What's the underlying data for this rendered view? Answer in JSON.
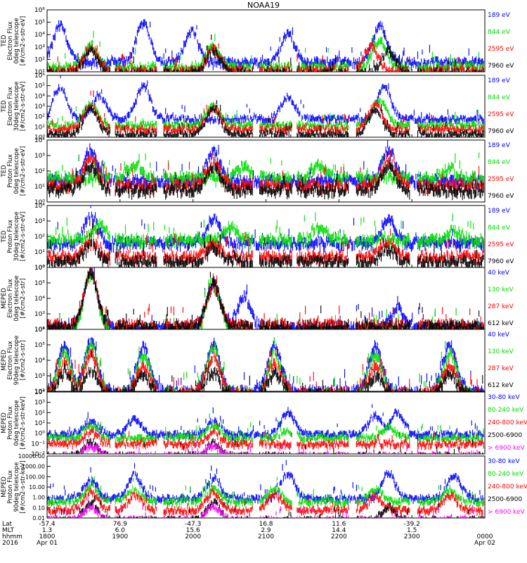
{
  "title": "NOAA19",
  "colors": {
    "black": "#000000",
    "red": "#ff0000",
    "green": "#00dd00",
    "blue": "#0000ff",
    "magenta": "#ff00ff"
  },
  "chart_data": [
    {
      "type": "scatter",
      "panel": 1,
      "ylabel": [
        "TED",
        "Electron Flux",
        "0deg telescope",
        "[#/cm2-s-str-eV]"
      ],
      "yscale": "log",
      "ylim": [
        10,
        1000000
      ],
      "yticks": [
        "10¹",
        "10²",
        "10³",
        "10⁴",
        "10⁵",
        "10⁶"
      ],
      "legend_placement": "right",
      "series": [
        {
          "name": "7960 eV",
          "color": "black",
          "bursts": [
            [
              0.1,
              3
            ],
            [
              0.38,
              3
            ],
            [
              0.78,
              3
            ]
          ],
          "base": 1.1
        },
        {
          "name": "2595 eV",
          "color": "red",
          "bursts": [
            [
              0.1,
              3.2
            ],
            [
              0.38,
              3.1
            ],
            [
              0.74,
              3.3
            ]
          ],
          "base": 1.3
        },
        {
          "name": "844 eV",
          "color": "green",
          "bursts": [
            [
              0.1,
              3.4
            ],
            [
              0.38,
              3.3
            ],
            [
              0.76,
              3.8
            ]
          ],
          "base": 1.6
        },
        {
          "name": "189 eV",
          "color": "blue",
          "bursts": [
            [
              0.03,
              5
            ],
            [
              0.22,
              5.2
            ],
            [
              0.33,
              4.5
            ],
            [
              0.55,
              4.3
            ],
            [
              0.76,
              5
            ]
          ],
          "base": 2
        }
      ]
    },
    {
      "type": "scatter",
      "panel": 2,
      "ylabel": [
        "TED",
        "Electron Flux",
        "30deg telescope",
        "[#/cm2-s-str-eV]"
      ],
      "yscale": "log",
      "ylim": [
        1,
        1000000
      ],
      "yticks": [
        "10⁰",
        "10¹",
        "10²",
        "10³",
        "10⁴",
        "10⁵",
        "10⁶"
      ],
      "legend_placement": "right",
      "series": [
        {
          "name": "7960 eV",
          "color": "black",
          "bursts": [
            [
              0.1,
              3
            ],
            [
              0.38,
              3
            ],
            [
              0.75,
              3
            ]
          ],
          "base": 0.5
        },
        {
          "name": "2595 eV",
          "color": "red",
          "bursts": [
            [
              0.1,
              3.3
            ],
            [
              0.38,
              3.1
            ],
            [
              0.75,
              3.4
            ]
          ],
          "base": 1
        },
        {
          "name": "844 eV",
          "color": "green",
          "bursts": [
            [
              0.1,
              3.5
            ],
            [
              0.38,
              3.3
            ],
            [
              0.76,
              3.8
            ]
          ],
          "base": 1.4
        },
        {
          "name": "189 eV",
          "color": "blue",
          "bursts": [
            [
              0.03,
              5
            ],
            [
              0.12,
              4.3
            ],
            [
              0.22,
              5.2
            ],
            [
              0.55,
              4.1
            ],
            [
              0.77,
              5.2
            ]
          ],
          "base": 2
        }
      ]
    },
    {
      "type": "scatter",
      "panel": 3,
      "ylabel": [
        "TED",
        "Proton Flux",
        "0deg telescope",
        "[#/cm2-s-str-eV]"
      ],
      "yscale": "log",
      "ylim": [
        1,
        10000
      ],
      "yticks": [
        "10⁰",
        "10¹",
        "10²",
        "10³",
        "10⁴"
      ],
      "legend_placement": "right",
      "series": [
        {
          "name": "7960 eV",
          "color": "black",
          "bursts": [
            [
              0.1,
              2.6
            ],
            [
              0.38,
              2.6
            ],
            [
              0.78,
              2.5
            ]
          ],
          "base": 1
        },
        {
          "name": "2595 eV",
          "color": "red",
          "bursts": [
            [
              0.1,
              2.9
            ],
            [
              0.38,
              2.8
            ],
            [
              0.78,
              2.9
            ]
          ],
          "base": 1.3
        },
        {
          "name": "844 eV",
          "color": "green",
          "bursts": [
            [
              0.2,
              2.6
            ],
            [
              0.45,
              2.5
            ],
            [
              0.62,
              2.7
            ],
            [
              0.92,
              2.4
            ]
          ],
          "base": 1.8
        },
        {
          "name": "189 eV",
          "color": "blue",
          "bursts": [
            [
              0.1,
              3.6
            ],
            [
              0.38,
              3.4
            ],
            [
              0.78,
              3.5
            ]
          ],
          "base": 1.6
        }
      ]
    },
    {
      "type": "scatter",
      "panel": 4,
      "ylabel": [
        "TED",
        "Proton Flux",
        "30deg telescope",
        "[#/cm2-s-str-eV]"
      ],
      "yscale": "log",
      "ylim": [
        1,
        10000
      ],
      "yticks": [
        "10⁰",
        "10¹",
        "10²",
        "10³",
        "10⁴"
      ],
      "legend_placement": "right",
      "series": [
        {
          "name": "7960 eV",
          "color": "black",
          "bursts": [
            [
              0.1,
              1.6
            ],
            [
              0.38,
              1.5
            ],
            [
              0.78,
              1.4
            ]
          ],
          "base": 0.6
        },
        {
          "name": "2595 eV",
          "color": "red",
          "bursts": [
            [
              0.1,
              1.9
            ],
            [
              0.38,
              1.8
            ],
            [
              0.78,
              1.9
            ]
          ],
          "base": 0.9
        },
        {
          "name": "844 eV",
          "color": "green",
          "bursts": [
            [
              0.12,
              3.0
            ],
            [
              0.42,
              2.8
            ],
            [
              0.62,
              2.9
            ],
            [
              0.93,
              2.6
            ]
          ],
          "base": 2
        },
        {
          "name": "189 eV",
          "color": "blue",
          "bursts": [
            [
              0.1,
              3.5
            ],
            [
              0.38,
              3.4
            ],
            [
              0.78,
              3.4
            ]
          ],
          "base": 1.8
        }
      ]
    },
    {
      "type": "scatter",
      "panel": 5,
      "ylabel": [
        "MEPED",
        "Electron Flux",
        "0deg telescope",
        "[#/cm2-s-str]"
      ],
      "yscale": "log",
      "ylim": [
        100,
        1000000
      ],
      "yticks": [
        "10²",
        "10³",
        "10⁴",
        "10⁵",
        "10⁶"
      ],
      "legend_placement": "right",
      "series": [
        {
          "name": "612 keV",
          "color": "black",
          "bursts": [
            [
              0.1,
              5.9
            ],
            [
              0.38,
              5.2
            ]
          ],
          "base": 2.4
        },
        {
          "name": "287 keV",
          "color": "red",
          "bursts": [
            [
              0.1,
              5.9
            ],
            [
              0.38,
              5.1
            ]
          ],
          "base": 2.5
        },
        {
          "name": "130 keV",
          "color": "green",
          "bursts": [
            [
              0.1,
              5.8
            ],
            [
              0.38,
              5.0
            ]
          ],
          "base": 2.1
        },
        {
          "name": "40 keV",
          "color": "blue",
          "bursts": [
            [
              0.1,
              6.0
            ],
            [
              0.38,
              5.2
            ],
            [
              0.45,
              4.3
            ],
            [
              0.8,
              3.6
            ]
          ],
          "base": 2.3
        }
      ]
    },
    {
      "type": "scatter",
      "panel": 6,
      "ylabel": [
        "MEPED",
        "Electron Flux",
        "90deg telescope",
        "[#/cm2-s-str]"
      ],
      "yscale": "log",
      "ylim": [
        100,
        1000000
      ],
      "yticks": [
        "10²",
        "10³",
        "10⁴",
        "10⁵",
        "10⁶"
      ],
      "legend_placement": "right",
      "series": [
        {
          "name": "612 keV",
          "color": "black",
          "bursts": [
            [
              0.04,
              3.3
            ],
            [
              0.1,
              3.6
            ],
            [
              0.22,
              3.2
            ],
            [
              0.38,
              3.5
            ],
            [
              0.52,
              3.4
            ],
            [
              0.75,
              3.2
            ],
            [
              0.92,
              3.3
            ]
          ],
          "base": 2
        },
        {
          "name": "287 keV",
          "color": "red",
          "bursts": [
            [
              0.04,
              4.0
            ],
            [
              0.1,
              4.6
            ],
            [
              0.22,
              3.8
            ],
            [
              0.38,
              4.5
            ],
            [
              0.52,
              4.0
            ],
            [
              0.75,
              3.8
            ],
            [
              0.92,
              3.9
            ]
          ],
          "base": 2.1
        },
        {
          "name": "130 keV",
          "color": "green",
          "bursts": [
            [
              0.04,
              4.7
            ],
            [
              0.1,
              5.2
            ],
            [
              0.22,
              4.6
            ],
            [
              0.38,
              5.0
            ],
            [
              0.52,
              4.6
            ],
            [
              0.75,
              4.6
            ],
            [
              0.92,
              4.7
            ]
          ],
          "base": 2
        },
        {
          "name": "40 keV",
          "color": "blue",
          "bursts": [
            [
              0.04,
              5.2
            ],
            [
              0.1,
              5.4
            ],
            [
              0.22,
              5.1
            ],
            [
              0.38,
              5.3
            ],
            [
              0.52,
              5.1
            ],
            [
              0.75,
              5.1
            ],
            [
              0.92,
              5.2
            ]
          ],
          "base": 2.2
        }
      ]
    },
    {
      "type": "scatter",
      "panel": 7,
      "ylabel": [
        "MEPED",
        "Proton Flux",
        "0deg telescope",
        "[#/cm2-s-str-keV]"
      ],
      "yscale": "log",
      "ylim": [
        0.01,
        10000
      ],
      "yticks": [
        "10⁻²",
        "10⁻¹",
        "10⁰",
        "10¹",
        "10²",
        "10³",
        "10⁴"
      ],
      "legend_placement": "right",
      "series": [
        {
          "name": "> 6900 keV",
          "color": "magenta",
          "bursts": [
            [
              0.1,
              -1.0
            ],
            [
              0.38,
              -1.0
            ]
          ],
          "base": -2
        },
        {
          "name": "2500-6900",
          "color": "black",
          "bursts": [
            [
              0.1,
              -0.6
            ],
            [
              0.38,
              -0.7
            ]
          ],
          "base": -2
        },
        {
          "name": "240-800 keV",
          "color": "red",
          "bursts": [
            [
              0.1,
              0.4
            ],
            [
              0.38,
              0.3
            ]
          ],
          "base": -0.8
        },
        {
          "name": "80-240 keV",
          "color": "green",
          "bursts": [
            [
              0.1,
              1.0
            ],
            [
              0.38,
              0.9
            ],
            [
              0.55,
              0.4
            ],
            [
              0.78,
              0.8
            ]
          ],
          "base": -0.2
        },
        {
          "name": "30-80 keV",
          "color": "blue",
          "bursts": [
            [
              0.1,
              1.4
            ],
            [
              0.2,
              1.6
            ],
            [
              0.38,
              1.4
            ],
            [
              0.55,
              2.3
            ],
            [
              0.75,
              2.0
            ],
            [
              0.8,
              2.3
            ]
          ],
          "base": 0.1
        }
      ]
    },
    {
      "type": "scatter",
      "panel": 8,
      "ylabel": [
        "MEPED",
        "Proton Flux",
        "90deg telescope",
        "[#/cm2-s-str-keV]"
      ],
      "yscale": "log",
      "ylim": [
        0.01,
        10000
      ],
      "yticks": [
        "0.01",
        "0.10",
        "1.00",
        "10.00",
        "100.00",
        "1000.00",
        "10000.00"
      ],
      "legend_placement": "right",
      "series": [
        {
          "name": "> 6900 keV",
          "color": "magenta",
          "bursts": [
            [
              0.1,
              -0.7
            ],
            [
              0.38,
              -0.7
            ]
          ],
          "base": -2
        },
        {
          "name": "2500-6900",
          "color": "black",
          "bursts": [
            [
              0.1,
              -0.3
            ],
            [
              0.38,
              -0.3
            ],
            [
              0.78,
              -0.7
            ]
          ],
          "base": -2
        },
        {
          "name": "240-800 keV",
          "color": "red",
          "bursts": [
            [
              0.1,
              0.8
            ],
            [
              0.2,
              0.4
            ],
            [
              0.38,
              0.7
            ],
            [
              0.52,
              0.5
            ],
            [
              0.75,
              0.3
            ],
            [
              0.92,
              0.4
            ]
          ],
          "base": -1
        },
        {
          "name": "80-240 keV",
          "color": "green",
          "bursts": [
            [
              0.1,
              1.3
            ],
            [
              0.2,
              1.0
            ],
            [
              0.38,
              1.2
            ],
            [
              0.52,
              1.1
            ],
            [
              0.75,
              1.0
            ],
            [
              0.92,
              1.0
            ]
          ],
          "base": -0.2
        },
        {
          "name": "30-80 keV",
          "color": "blue",
          "bursts": [
            [
              0.1,
              1.9
            ],
            [
              0.2,
              2.4
            ],
            [
              0.38,
              2.1
            ],
            [
              0.55,
              2.6
            ],
            [
              0.78,
              2.6
            ],
            [
              0.93,
              2.3
            ]
          ],
          "base": 0.1
        }
      ]
    }
  ],
  "x_axis": {
    "row_labels": [
      "Lat",
      "MLT",
      "hhmm",
      "2016"
    ],
    "ticks": [
      {
        "lat": "-57.4",
        "mlt": "1.3",
        "hhmm": "1800",
        "date": "Apr 01"
      },
      {
        "lat": "76.9",
        "mlt": "6.0",
        "hhmm": "1900",
        "date": ""
      },
      {
        "lat": "-47.3",
        "mlt": "15.6",
        "hhmm": "2000",
        "date": ""
      },
      {
        "lat": "16.8",
        "mlt": "2.9",
        "hhmm": "2100",
        "date": ""
      },
      {
        "lat": "11.6",
        "mlt": "14.4",
        "hhmm": "2200",
        "date": ""
      },
      {
        "lat": "-39.2",
        "mlt": "1.5",
        "hhmm": "2300",
        "date": ""
      },
      {
        "lat": "",
        "mlt": "",
        "hhmm": "0000",
        "date": "Apr 02"
      }
    ]
  }
}
